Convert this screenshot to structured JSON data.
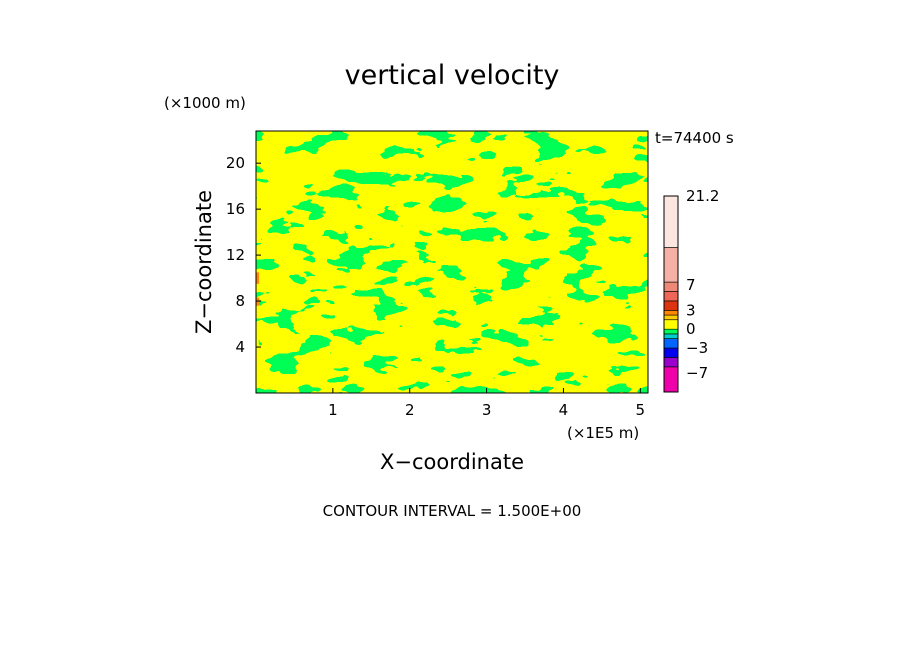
{
  "chart_data": {
    "type": "heatmap",
    "title": "vertical velocity",
    "xlabel": "X−coordinate",
    "ylabel": "Z−coordinate",
    "x_unit": "(×1E5 m)",
    "y_unit": "(×1000 m)",
    "time_label": "t=74400 s",
    "footer": "CONTOUR INTERVAL = 1.500E+00",
    "xlim": [
      0,
      5.1
    ],
    "ylim": [
      0,
      22.8
    ],
    "x_ticks": [
      1,
      2,
      3,
      4,
      5
    ],
    "y_ticks": [
      4,
      8,
      12,
      16,
      20
    ],
    "colorbar": {
      "min": -10,
      "max": 21.2,
      "tick_labels": [
        {
          "label": "21.2",
          "value": 21.2
        },
        {
          "label": "7",
          "value": 7
        },
        {
          "label": "3",
          "value": 3
        },
        {
          "label": "0",
          "value": 0
        },
        {
          "label": "−3",
          "value": -3
        },
        {
          "label": "−7",
          "value": -7
        }
      ],
      "levels": [
        {
          "from": -10,
          "to": -6,
          "color": "#ee00aa"
        },
        {
          "from": -6,
          "to": -4.5,
          "color": "#9900cc"
        },
        {
          "from": -4.5,
          "to": -3,
          "color": "#0000ee"
        },
        {
          "from": -3,
          "to": -1.5,
          "color": "#0066ff"
        },
        {
          "from": -1.5,
          "to": -0.75,
          "color": "#00cccc"
        },
        {
          "from": -0.75,
          "to": 0,
          "color": "#00ff55"
        },
        {
          "from": 0,
          "to": 1.5,
          "color": "#ffff00"
        },
        {
          "from": 1.5,
          "to": 2.25,
          "color": "#ffcc00"
        },
        {
          "from": 2.25,
          "to": 3,
          "color": "#ff8800"
        },
        {
          "from": 3,
          "to": 4.5,
          "color": "#dd3311"
        },
        {
          "from": 4.5,
          "to": 6,
          "color": "#ee6655"
        },
        {
          "from": 6,
          "to": 7.5,
          "color": "#ee8877"
        },
        {
          "from": 7.5,
          "to": 13,
          "color": "#f4b0a4"
        },
        {
          "from": 13,
          "to": 21.2,
          "color": "#fbe6e0"
        }
      ]
    },
    "field_colors": {
      "positive": "#ffff00",
      "negative": "#00ff55",
      "strong_positive": "#ff8800"
    }
  }
}
